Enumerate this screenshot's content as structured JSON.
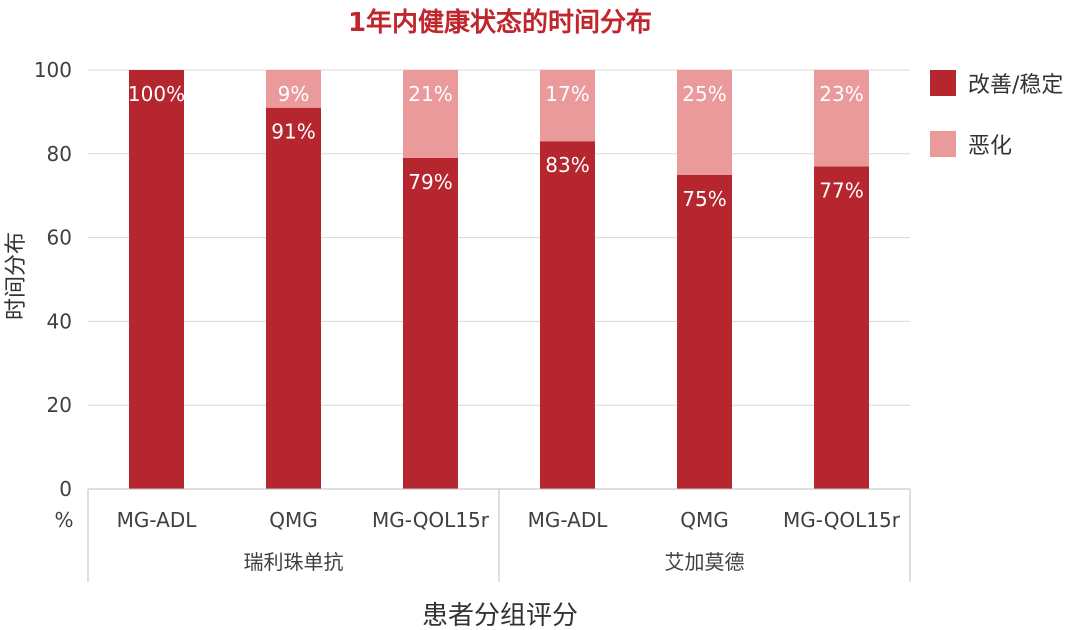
{
  "chart_data": {
    "type": "bar",
    "stacked": true,
    "title": "1年内健康状态的时间分布",
    "xlabel": "患者分组评分",
    "ylabel": "时间分布",
    "y_unit_label": "%",
    "ylim": [
      0,
      100
    ],
    "yticks": [
      "0",
      "20",
      "40",
      "60",
      "80",
      "100"
    ],
    "grid": true,
    "legend_position": "right",
    "groups": [
      {
        "label": "瑞利珠单抗",
        "categories": [
          "MG-ADL",
          "QMG",
          "MG-QOL15r"
        ]
      },
      {
        "label": "艾加莫德",
        "categories": [
          "MG-ADL",
          "QMG",
          "MG-QOL15r"
        ]
      }
    ],
    "categories": [
      "MG-ADL",
      "QMG",
      "MG-QOL15r",
      "MG-ADL",
      "QMG",
      "MG-QOL15r"
    ],
    "series": [
      {
        "name": "改善/稳定",
        "color": "#b5262f",
        "values": [
          100,
          91,
          79,
          83,
          75,
          77
        ],
        "labels": [
          "100%",
          "91%",
          "79%",
          "83%",
          "75%",
          "77%"
        ]
      },
      {
        "name": "恶化",
        "color": "#eb9a9c",
        "values": [
          0,
          9,
          21,
          17,
          25,
          23
        ],
        "labels": [
          "",
          "9%",
          "21%",
          "17%",
          "25%",
          "23%"
        ]
      }
    ]
  }
}
